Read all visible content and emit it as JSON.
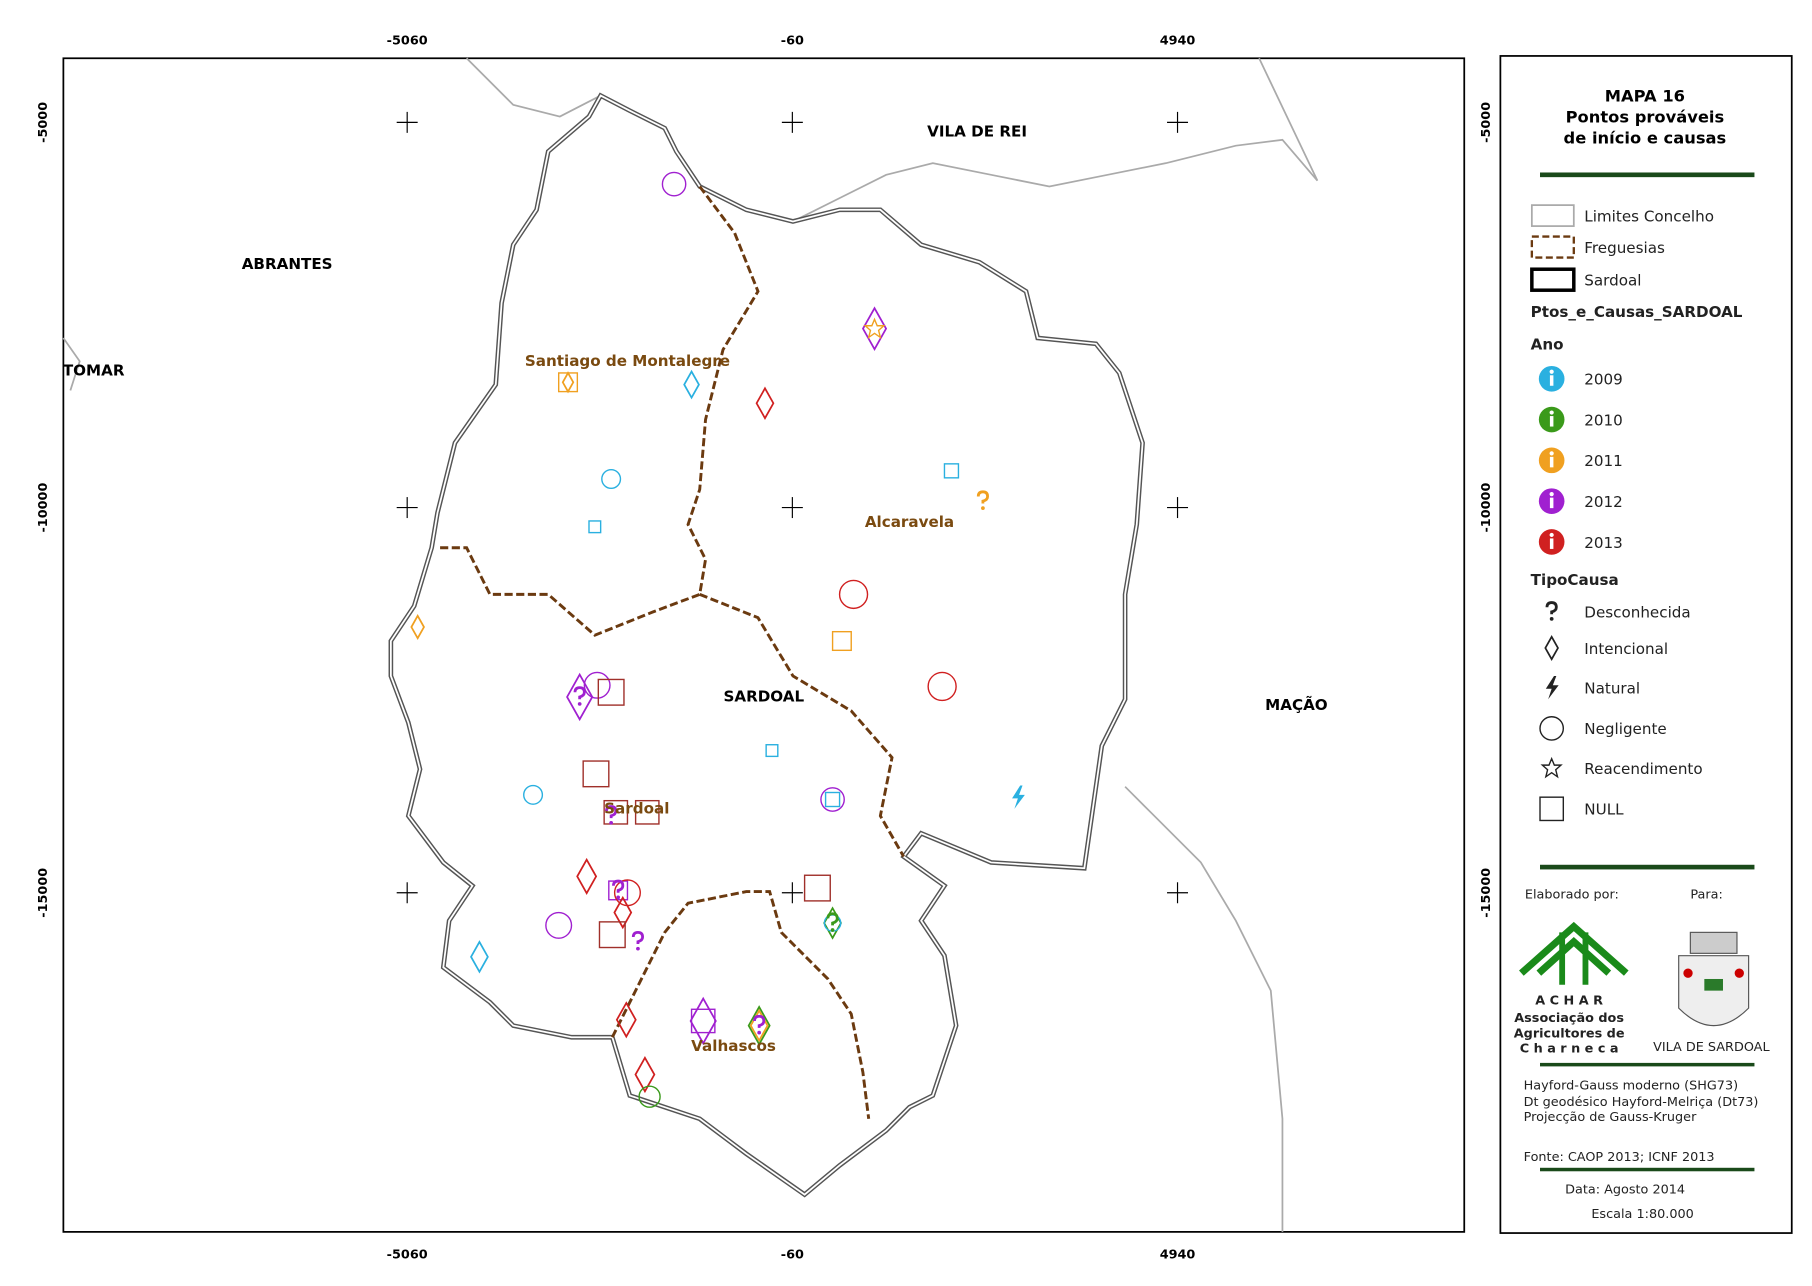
{
  "map": {
    "title": [
      "MAPA 16",
      "Pontos prováveis",
      "de início e causas"
    ],
    "grid": {
      "xlim": [
        -9523,
        8662
      ],
      "ylim": [
        -19402,
        -4168
      ],
      "xticks": [
        -5060,
        -60,
        4940
      ],
      "yticks": [
        -5000,
        -10000,
        -15000
      ]
    },
    "places": [
      "VILA DE REI",
      "ABRANTES",
      "TOMAR",
      "Santiago de Montalegre",
      "Alcaravela",
      "SARDOAL",
      "MAÇÃO",
      "Sardoal",
      "Valhascos"
    ],
    "legend": {
      "layers": [
        "Limites Concelho",
        "Freguesias",
        "Sardoal"
      ],
      "points_layer": "Ptos_e_Causas_SARDOAL",
      "year_title": "Ano",
      "years": [
        "2009",
        "2010",
        "2011",
        "2012",
        "2013"
      ],
      "cause_title": "TipoCausa",
      "causes": [
        "Desconhecida",
        "Intencional",
        "Natural",
        "Negligente",
        "Reacendimento",
        "NULL"
      ]
    },
    "credits": {
      "made_by": "Elaborado por:",
      "for": "Para:",
      "logo_name": "A C H A R",
      "logo_lines": [
        "Associação dos",
        "Agricultores de",
        "C h a r n e c a"
      ],
      "crest": "VILA DE SARDOAL",
      "projection": [
        "Hayford-Gauss moderno (SHG73)",
        "Dt geodésico Hayford-Melriça (Dt73)",
        "Projecção de Gauss-Kruger"
      ],
      "source": "Fonte: CAOP 2013; ICNF 2013",
      "date": "Data: Agosto 2014",
      "scale": "Escala 1:80.000"
    }
  }
}
